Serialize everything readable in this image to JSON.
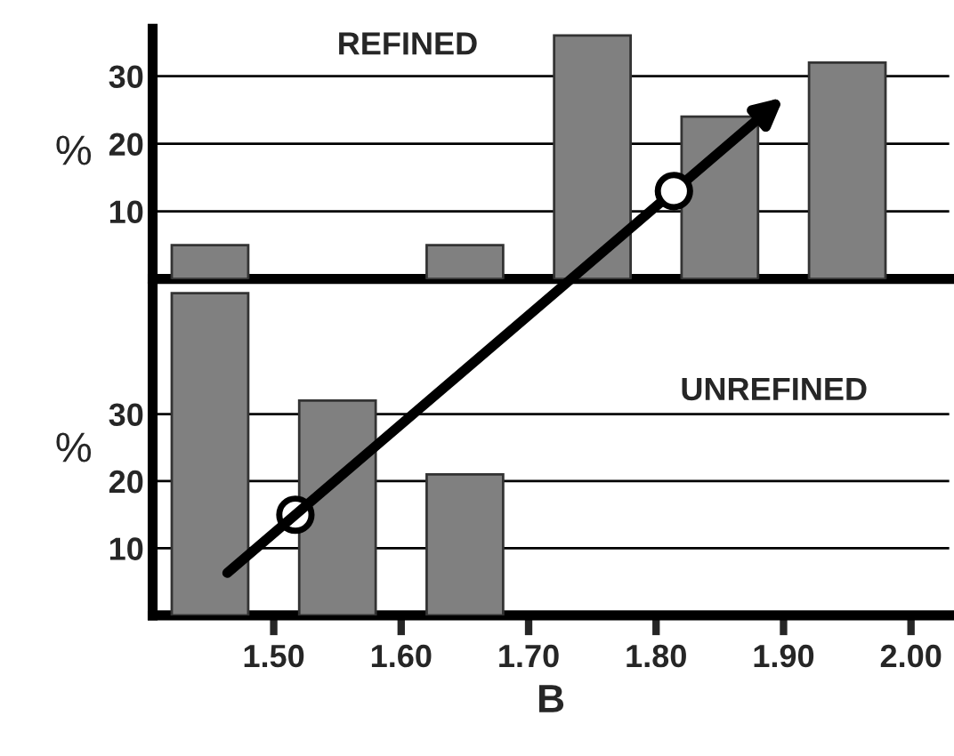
{
  "chart_data": [
    {
      "type": "bar",
      "ylabel": "%",
      "annotations": [
        "REFINED"
      ],
      "xlim": [
        1.405,
        2.03
      ],
      "ylim": [
        0,
        37
      ],
      "yticks": [
        10,
        20,
        30
      ],
      "grid": "y",
      "tick_labels": "y",
      "series": [
        {
          "x": [
            1.45,
            1.55,
            1.65,
            1.75,
            1.85,
            1.95
          ],
          "values": [
            5,
            null,
            5,
            36,
            24,
            32
          ],
          "color": "#808080"
        },
        {
          "type": "scatter",
          "x": [
            1.814
          ],
          "values": [
            13
          ],
          "color": "#ffffff",
          "marker": "circle"
        }
      ]
    },
    {
      "type": "bar",
      "ylabel": "%",
      "xlabel": "B",
      "annotations": [
        "UNREFINED"
      ],
      "xlim": [
        1.405,
        2.03
      ],
      "ylim": [
        0,
        49
      ],
      "yticks": [
        10,
        20,
        30
      ],
      "xticks": [
        {
          "value": 1.5,
          "label": "1.50"
        },
        {
          "value": 1.6,
          "label": "1.60"
        },
        {
          "value": 1.7,
          "label": "1.70"
        },
        {
          "value": 1.8,
          "label": "1.80"
        },
        {
          "value": 1.9,
          "label": "1.90"
        },
        {
          "value": 2.0,
          "label": "2.00"
        }
      ],
      "grid": "y",
      "series": [
        {
          "x": [
            1.45,
            1.55,
            1.65
          ],
          "values": [
            48,
            32,
            21
          ],
          "color": "#808080"
        },
        {
          "type": "scatter",
          "x": [
            1.517
          ],
          "values": [
            15
          ],
          "color": "#ffffff",
          "marker": "circle"
        }
      ]
    }
  ]
}
